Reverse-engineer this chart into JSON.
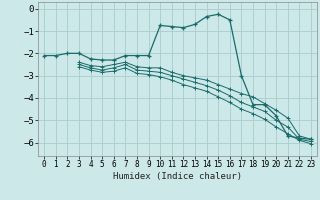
{
  "xlabel": "Humidex (Indice chaleur)",
  "background_color": "#cce8e8",
  "grid_color": "#aacccc",
  "line_color": "#1a6b6b",
  "xlim": [
    -0.5,
    23.5
  ],
  "ylim": [
    -6.6,
    0.3
  ],
  "xticks": [
    0,
    1,
    2,
    3,
    4,
    5,
    6,
    7,
    8,
    9,
    10,
    11,
    12,
    13,
    14,
    15,
    16,
    17,
    18,
    19,
    20,
    21,
    22,
    23
  ],
  "yticks": [
    0,
    -1,
    -2,
    -3,
    -4,
    -5,
    -6
  ],
  "line1_x": [
    0,
    1,
    2,
    3,
    4,
    5,
    6,
    7,
    8,
    9,
    10,
    11,
    12,
    13,
    14,
    15,
    16,
    17,
    18,
    19,
    20,
    21,
    22,
    23
  ],
  "line1_y": [
    -2.1,
    -2.1,
    -2.0,
    -2.0,
    -2.25,
    -2.3,
    -2.3,
    -2.1,
    -2.1,
    -2.1,
    -0.75,
    -0.8,
    -0.85,
    -0.7,
    -0.35,
    -0.25,
    -0.5,
    -3.0,
    -4.3,
    -4.3,
    -4.8,
    -5.7,
    -5.8,
    -5.85
  ],
  "line2_x": [
    3,
    23
  ],
  "line2_y": [
    -2.4,
    -5.75
  ],
  "line3_x": [
    3,
    23
  ],
  "line3_y": [
    -2.5,
    -6.0
  ],
  "line4_x": [
    3,
    23
  ],
  "line4_y": [
    -2.6,
    -6.1
  ],
  "markers_x": [
    3,
    4,
    5,
    6,
    7,
    8,
    9,
    10,
    11,
    12,
    13,
    14,
    15,
    16,
    17,
    18,
    19,
    20,
    21,
    22,
    23
  ],
  "markers2_y": [
    -2.4,
    -2.55,
    -2.6,
    -2.5,
    -2.4,
    -2.6,
    -2.65,
    -2.65,
    -2.85,
    -3.0,
    -3.1,
    -3.2,
    -3.4,
    -3.6,
    -3.8,
    -3.95,
    -4.25,
    -4.55,
    -4.9,
    -5.7,
    -5.85
  ],
  "markers3_y": [
    -2.5,
    -2.65,
    -2.75,
    -2.65,
    -2.5,
    -2.75,
    -2.8,
    -2.85,
    -3.0,
    -3.15,
    -3.3,
    -3.45,
    -3.65,
    -3.9,
    -4.2,
    -4.4,
    -4.6,
    -5.0,
    -5.3,
    -5.85,
    -5.95
  ],
  "markers4_y": [
    -2.6,
    -2.75,
    -2.85,
    -2.8,
    -2.65,
    -2.9,
    -2.95,
    -3.05,
    -3.2,
    -3.4,
    -3.55,
    -3.7,
    -3.95,
    -4.2,
    -4.5,
    -4.7,
    -4.95,
    -5.3,
    -5.6,
    -5.9,
    -6.05
  ]
}
